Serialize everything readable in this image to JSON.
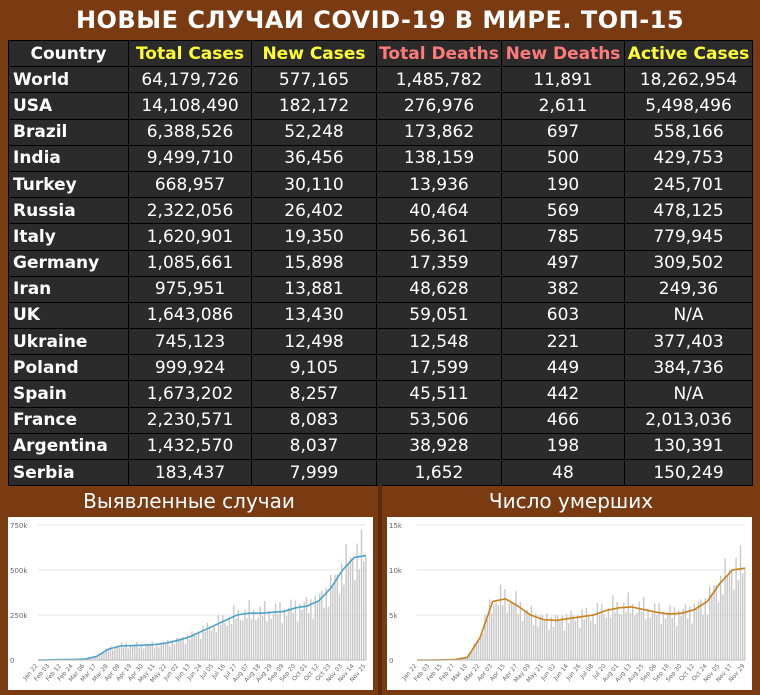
{
  "title": "НОВЫЕ СЛУЧАИ COVID-19 В МИРЕ. ТОП-15",
  "table": {
    "headers": [
      "Country",
      "Total Cases",
      "New Cases",
      "Total Deaths",
      "New Deaths",
      "Active Cases"
    ],
    "header_colors": [
      "#ffffff",
      "#ffff33",
      "#ffff33",
      "#ff7a7a",
      "#ff7a7a",
      "#ffff33"
    ],
    "rows": [
      [
        "World",
        "64,179,726",
        "577,165",
        "1,485,782",
        "11,891",
        "18,262,954"
      ],
      [
        "USA",
        "14,108,490",
        "182,172",
        "276,976",
        "2,611",
        "5,498,496"
      ],
      [
        "Brazil",
        "6,388,526",
        "52,248",
        "173,862",
        "697",
        "558,166"
      ],
      [
        "India",
        "9,499,710",
        "36,456",
        "138,159",
        "500",
        "429,753"
      ],
      [
        "Turkey",
        "668,957",
        "30,110",
        "13,936",
        "190",
        "245,701"
      ],
      [
        "Russia",
        "2,322,056",
        "26,402",
        "40,464",
        "569",
        "478,125"
      ],
      [
        "Italy",
        "1,620,901",
        "19,350",
        "56,361",
        "785",
        "779,945"
      ],
      [
        "Germany",
        "1,085,661",
        "15,898",
        "17,359",
        "497",
        "309,502"
      ],
      [
        "Iran",
        "975,951",
        "13,881",
        "48,628",
        "382",
        "249,36"
      ],
      [
        "UK",
        "1,643,086",
        "13,430",
        "59,051",
        "603",
        "N/A"
      ],
      [
        "Ukraine",
        "745,123",
        "12,498",
        "12,548",
        "221",
        "377,403"
      ],
      [
        "Poland",
        "999,924",
        "9,105",
        "17,599",
        "449",
        "384,736"
      ],
      [
        "Spain",
        "1,673,202",
        "8,257",
        "45,511",
        "442",
        "N/A"
      ],
      [
        "France",
        "2,230,571",
        "8,083",
        "53,506",
        "466",
        "2,013,036"
      ],
      [
        "Argentina",
        "1,432,570",
        "8,037",
        "38,928",
        "198",
        "130,391"
      ],
      [
        "Serbia",
        "183,437",
        "7,999",
        "1,652",
        "48",
        "150,249"
      ]
    ]
  },
  "charts": {
    "cases_label": "Выявленные случаи",
    "deaths_label": "Число умерших"
  },
  "chart_data": [
    {
      "type": "line",
      "title": "Выявленные случаи",
      "ylim": [
        0,
        750000
      ],
      "yticks": [
        "0",
        "250k",
        "500k",
        "750k"
      ],
      "xticks": [
        "Jan 22",
        "Feb 03",
        "Feb 12",
        "Feb 24",
        "Mar 06",
        "Mar 17",
        "Mar 28",
        "Apr 08",
        "Apr 19",
        "Apr 30",
        "May 11",
        "May 22",
        "Jun 02",
        "Jun 13",
        "Jun 24",
        "Jul 05",
        "Jul 16",
        "Jul 27",
        "Aug 07",
        "Aug 18",
        "Aug 29",
        "Sep 09",
        "Sep 20",
        "Oct 01",
        "Oct 12",
        "Oct 23",
        "Nov 03",
        "Nov 14",
        "Nov 25"
      ],
      "series_values": [
        0,
        1000,
        2000,
        2000,
        5000,
        20000,
        60000,
        78000,
        80000,
        82000,
        86000,
        95000,
        110000,
        130000,
        160000,
        190000,
        220000,
        250000,
        260000,
        260000,
        265000,
        270000,
        290000,
        300000,
        330000,
        400000,
        500000,
        570000,
        580000
      ],
      "bar_color": "#c8c8c8",
      "line_color": "#4aa3c8"
    },
    {
      "type": "line",
      "title": "Число умерших",
      "ylim": [
        0,
        15000
      ],
      "yticks": [
        "0",
        "5k",
        "10k",
        "15k"
      ],
      "xticks": [
        "Jan 22",
        "Feb 03",
        "Feb 15",
        "Feb 27",
        "Mar 10",
        "Mar 22",
        "Apr 03",
        "Apr 15",
        "Apr 27",
        "May 09",
        "May 21",
        "Jun 02",
        "Jun 14",
        "Jun 26",
        "Jul 08",
        "Jul 20",
        "Aug 01",
        "Aug 13",
        "Aug 25",
        "Sep 06",
        "Sep 18",
        "Sep 30",
        "Oct 12",
        "Oct 24",
        "Nov 05",
        "Nov 17",
        "Nov 29"
      ],
      "series_values": [
        0,
        0,
        20,
        50,
        300,
        2500,
        6500,
        6800,
        6000,
        5000,
        4500,
        4400,
        4600,
        4800,
        5000,
        5500,
        5800,
        5900,
        5600,
        5300,
        5100,
        5200,
        5600,
        6500,
        8500,
        10000,
        10200
      ],
      "bar_color": "#c8c8c8",
      "line_color": "#c8801a"
    }
  ]
}
